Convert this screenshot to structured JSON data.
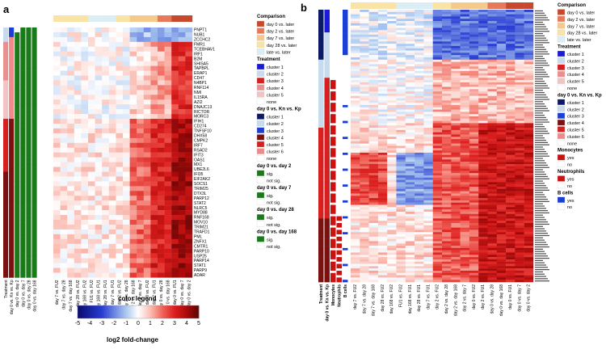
{
  "figure": {
    "panel_a_label": "a",
    "panel_b_label": "b"
  },
  "chart_data": [
    {
      "type": "heatmap",
      "panel": "a",
      "rows": [
        "PNPT1",
        "NUB1",
        "ZCCHC2",
        "FMR1",
        "TCEBHAV1",
        "IRF1",
        "B2M",
        "SHISA5",
        "TAPBPL",
        "ERAP1",
        "CD47",
        "N4BP1",
        "RNF114",
        "NMI",
        "IL15RA",
        "AZI2",
        "DNAJC13",
        "RICTOR",
        "MORC3",
        "IFIH1",
        "CD274",
        "TNFSF10",
        "DHX58",
        "CMPK2",
        "IRF7",
        "RSAD2",
        "IFIT3",
        "OAS1",
        "MX1",
        "UBE2L6",
        "IFI35",
        "EIF2AK2",
        "SOCS1",
        "TRIM25",
        "DTX3L",
        "PARP12",
        "STAT2",
        "NLRC5",
        "MYD88",
        "RNF168",
        "MOV10",
        "TRIM21",
        "TRAFD1",
        "PML",
        "ZNFX1",
        "CMTR1",
        "PARP10",
        "USP25",
        "PARP14",
        "STAT1",
        "PARP9",
        "ADAR"
      ],
      "columns": [
        "day 0 vs. day 168",
        "day 0 vs. day 28",
        "day 0 vs. day 7",
        "day 0 vs. day 2",
        "day 0 vs. Kn vs. Kp",
        "Treatment",
        "day 7 vs. FU2",
        "day 7 vs. day 28",
        "day 7 vs. day 168",
        "day 28 vs. FU2",
        "day 168 vs. FU2",
        "FU1 vs. FU2",
        "day 168 vs. FU1",
        "day 28 vs. FU1",
        "day 7 vs. FU1",
        "day 2 vs. FU2",
        "day 2 vs. day 28",
        "day 2 vs. day 168",
        "day 2 vs. day 7",
        "day 0 vs. FU2",
        "day 2 vs. FU1",
        "day 0 vs. day 28",
        "day 0 vs. day 168",
        "day 0 vs. FU1",
        "day 0 vs. day 7",
        "day 0 vs. day 2"
      ],
      "row_group_split_index": 19,
      "high_cluster_values": {
        "day0_cols": 4.0,
        "day2_cols": 3.0,
        "day7_cols": 2.0,
        "late_cols": 0.4
      },
      "low_cluster_values": {
        "day0_cols": 2.8,
        "day2_cols": 1.2,
        "day7_cols": 0.6,
        "late_cols": 0.1
      },
      "annotation_colors": {
        "sig": "#1a7a1a",
        "not_sig": "#ffffff"
      }
    },
    {
      "type": "heatmap",
      "panel": "b",
      "columns": [
        "Treatment",
        "day 0 vs. Kn vs. Kp",
        "Monocytes",
        "Neutrophils",
        "B cells",
        "day 7 vs. FU2",
        "day 7 vs. day 28",
        "day 7 vs. day 168",
        "day 28 vs. FU2",
        "day 168 vs. FU2",
        "FU1 vs. FU2",
        "day 168 vs. FU1",
        "day 28 vs. FU1",
        "day 7 vs. FU1",
        "day 2 vs. FU2",
        "day 2 vs. day 28",
        "day 2 vs. day 168",
        "day 2 vs. day 7",
        "day 0 vs. FU2",
        "day 2 vs. FU1",
        "day 0 vs. day 28",
        "day 0 vs. day 168",
        "day 0 vs. FU1",
        "day 0 vs. day 7",
        "day 0 vs. day 2"
      ],
      "row_count": 120,
      "upper_block_rows": 50,
      "annotation_colors": {
        "yes_red": "#cc1111",
        "yes_blue": "#1a3fd6",
        "no": "#ffffff"
      }
    }
  ],
  "legend": {
    "comparison": {
      "title": "Comparison",
      "items": [
        {
          "label": "day 0 vs. later",
          "color": "#c8482d"
        },
        {
          "label": "day 2 vs. later",
          "color": "#e7795a"
        },
        {
          "label": "day 7 vs. later",
          "color": "#f5c98a"
        },
        {
          "label": "day 28 vs. later",
          "color": "#f9e4a6"
        },
        {
          "label": "late vs. later",
          "color": "#dbeef6"
        }
      ]
    },
    "treatment": {
      "title": "Treatment",
      "items": [
        {
          "label": "cluster 1",
          "color": "#1a1adb"
        },
        {
          "label": "cluster 2",
          "color": "#c7dbee"
        },
        {
          "label": "cluster 3",
          "color": "#d62020"
        },
        {
          "label": "cluster 4",
          "color": "#e89090"
        },
        {
          "label": "cluster 5",
          "color": "#f2c3c3"
        },
        {
          "label": "none",
          "color": "#ffffff"
        }
      ]
    },
    "day0_kn_kp": {
      "title": "day 0 vs. Kn vs. Kp",
      "items": [
        {
          "label": "cluster 1",
          "color": "#0b1a66"
        },
        {
          "label": "cluster 2",
          "color": "#c7dbee"
        },
        {
          "label": "cluster 3",
          "color": "#1a3fd6"
        },
        {
          "label": "cluster 4",
          "color": "#7a1010"
        },
        {
          "label": "cluster 5",
          "color": "#d62020"
        },
        {
          "label": "cluster 6",
          "color": "#f08a8a"
        },
        {
          "label": "none",
          "color": "#ffffff"
        }
      ]
    },
    "day2": {
      "title": "day 0 vs. day 2",
      "sig": "sig.",
      "not_sig": "not sig."
    },
    "day7": {
      "title": "day 0 vs. day 7",
      "sig": "sig.",
      "not_sig": "not sig."
    },
    "day28": {
      "title": "day 0 vs. day 28",
      "sig": "sig.",
      "not_sig": "not sig."
    },
    "day168": {
      "title": "day 0 vs. day 168",
      "sig": "sig.",
      "not_sig": "not sig."
    },
    "monocytes": {
      "title": "Monocytes",
      "yes": "yes",
      "no": "no"
    },
    "neutrophils": {
      "title": "Neutrophils",
      "yes": "yes",
      "no": "no"
    },
    "bcells": {
      "title": "B cells",
      "yes": "yes",
      "no": "no"
    }
  },
  "colorbar": {
    "title": "color legend",
    "xlabel": "log2 fold-change",
    "ticks": [
      -5,
      -4,
      -3,
      -2,
      -1,
      0,
      1,
      2,
      3,
      4,
      5
    ],
    "range": [
      -5,
      5
    ]
  }
}
